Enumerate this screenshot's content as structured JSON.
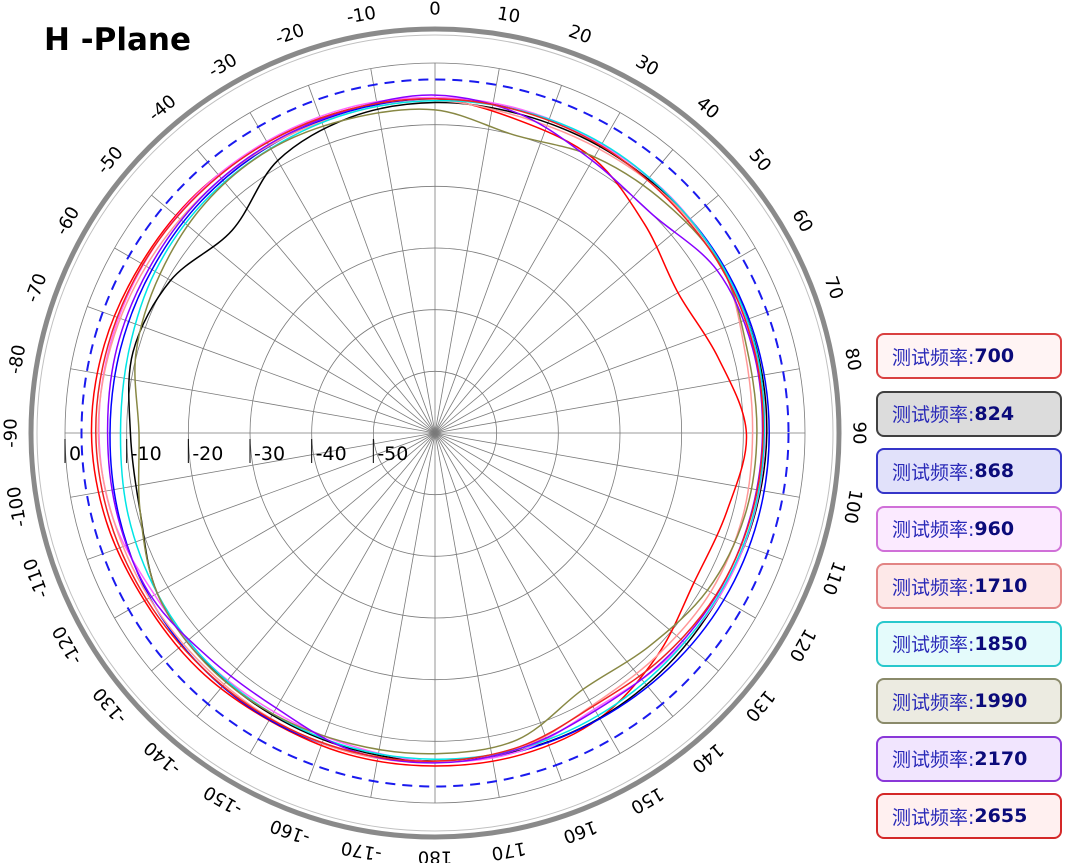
{
  "title": "H -Plane",
  "chart_data": {
    "type": "polar-line",
    "angle_labels": [
      "0",
      "10",
      "20",
      "30",
      "40",
      "50",
      "60",
      "70",
      "80",
      "90",
      "100",
      "110",
      "120",
      "130",
      "140",
      "150",
      "160",
      "170",
      "180",
      "-170",
      "-160",
      "-150",
      "-140",
      "-130",
      "-120",
      "-110",
      "-100",
      "-90",
      "-80",
      "-70",
      "-60",
      "-50",
      "-40",
      "-30",
      "-20",
      "-10"
    ],
    "radial_labels": [
      "0",
      "-10",
      "-20",
      "-30",
      "-40",
      "-50"
    ],
    "radial_range": [
      -60,
      0
    ],
    "reference_ring": -3,
    "grid": true,
    "legend_position": "right",
    "theta_deg": [
      0,
      15,
      30,
      45,
      60,
      75,
      90,
      105,
      120,
      135,
      150,
      165,
      180,
      195,
      210,
      225,
      240,
      255,
      270,
      285,
      300,
      315,
      330,
      345
    ],
    "series": [
      {
        "name": "测试频率:700",
        "label": "测试频率:",
        "value": "700",
        "color": "#ff0000",
        "border": "#d94040",
        "bg": "#fff4f4",
        "r": [
          -5.8,
          -7.5,
          -8.6,
          -12.0,
          -14.5,
          -12.5,
          -9.5,
          -11.0,
          -11.5,
          -9.0,
          -6.6,
          -6.0,
          -6.0,
          -6.0,
          -6.2,
          -5.8,
          -5.6,
          -4.8,
          -4.3,
          -4.5,
          -5.0,
          -5.2,
          -5.6,
          -5.7
        ]
      },
      {
        "name": "测试频率:824",
        "label": "测试频率:",
        "value": "824",
        "color": "#000000",
        "border": "#404040",
        "bg": "#dcdcdc",
        "r": [
          -6.4,
          -6.5,
          -6.4,
          -6.2,
          -6.1,
          -6.1,
          -6.2,
          -6.5,
          -6.8,
          -6.7,
          -6.6,
          -6.7,
          -6.8,
          -7.0,
          -7.2,
          -7.4,
          -8.0,
          -10.5,
          -10.6,
          -9.3,
          -10.5,
          -13.5,
          -9.0,
          -7.0
        ]
      },
      {
        "name": "测试频率:868",
        "label": "测试频率:",
        "value": "868",
        "color": "#0000ff",
        "border": "#3535c8",
        "bg": "#e1e1fa",
        "r": [
          -5.8,
          -5.9,
          -5.9,
          -6.0,
          -5.9,
          -5.8,
          -5.8,
          -5.8,
          -5.9,
          -6.2,
          -6.5,
          -6.6,
          -6.6,
          -6.5,
          -6.3,
          -6.4,
          -6.6,
          -7.0,
          -7.3,
          -7.2,
          -7.0,
          -6.6,
          -6.3,
          -6.0
        ]
      },
      {
        "name": "测试频率:960",
        "label": "测试频率:",
        "value": "960",
        "color": "#ff66ff",
        "border": "#d070d8",
        "bg": "#fbeaff",
        "r": [
          -5.6,
          -5.7,
          -6.0,
          -5.9,
          -6.2,
          -6.3,
          -6.5,
          -6.6,
          -6.8,
          -7.5,
          -8.3,
          -6.6,
          -6.7,
          -7.5,
          -7.8,
          -7.6,
          -7.5,
          -6.0,
          -5.5,
          -5.4,
          -5.4,
          -5.3,
          -5.4,
          -5.4
        ]
      },
      {
        "name": "测试频率:1710",
        "label": "测试频率:",
        "value": "1710",
        "color": "#ff9999",
        "border": "#e28484",
        "bg": "#fde8e8",
        "r": [
          -6.1,
          -6.9,
          -6.8,
          -6.3,
          -6.2,
          -8.0,
          -8.5,
          -8.3,
          -8.4,
          -9.0,
          -9.0,
          -7.0,
          -6.6,
          -6.4,
          -6.6,
          -6.8,
          -6.5,
          -6.0,
          -5.4,
          -5.6,
          -5.9,
          -6.1,
          -6.2,
          -6.3
        ]
      },
      {
        "name": "测试频率:1850",
        "label": "测试频率:",
        "value": "1850",
        "color": "#00e5e5",
        "border": "#28c8cc",
        "bg": "#e4fbfb",
        "r": [
          -6.1,
          -5.9,
          -5.8,
          -6.0,
          -6.1,
          -6.2,
          -6.6,
          -6.7,
          -7.0,
          -7.2,
          -7.1,
          -7.0,
          -7.1,
          -7.2,
          -7.4,
          -7.6,
          -8.0,
          -8.5,
          -9.0,
          -8.6,
          -7.6,
          -7.0,
          -6.7,
          -6.3
        ]
      },
      {
        "name": "测试频率:1990",
        "label": "测试频率:",
        "value": "1990",
        "color": "#888844",
        "border": "#8a8a6a",
        "bg": "#ecebe1",
        "r": [
          -7.6,
          -10.0,
          -8.3,
          -7.2,
          -6.3,
          -7.6,
          -7.8,
          -8.0,
          -9.0,
          -11.0,
          -12.0,
          -8.5,
          -8.0,
          -7.8,
          -7.4,
          -7.3,
          -8.0,
          -10.5,
          -12.0,
          -9.8,
          -8.5,
          -7.3,
          -6.8,
          -7.2
        ]
      },
      {
        "name": "测试频率:2170",
        "label": "测试频率:",
        "value": "2170",
        "color": "#8800ff",
        "border": "#8a38d8",
        "bg": "#f1e5fe",
        "r": [
          -5.2,
          -6.5,
          -9.0,
          -10.0,
          -7.2,
          -6.7,
          -6.9,
          -7.1,
          -7.3,
          -7.7,
          -8.0,
          -7.0,
          -6.5,
          -6.8,
          -8.5,
          -8.3,
          -6.9,
          -6.8,
          -6.9,
          -6.6,
          -6.5,
          -6.2,
          -6.0,
          -5.8
        ]
      },
      {
        "name": "测试频率:2655",
        "label": "测试频率:",
        "value": "2655",
        "color": "#ee2222",
        "border": "#d42828",
        "bg": "#fff0f0",
        "r": [
          -5.8,
          -6.0,
          -6.2,
          -6.5,
          -6.4,
          -6.5,
          -6.8,
          -7.0,
          -7.4,
          -8.2,
          -8.8,
          -7.3,
          -6.8,
          -6.6,
          -6.5,
          -6.4,
          -6.0,
          -5.4,
          -5.0,
          -5.1,
          -5.3,
          -5.5,
          -5.6,
          -5.7
        ]
      }
    ]
  }
}
